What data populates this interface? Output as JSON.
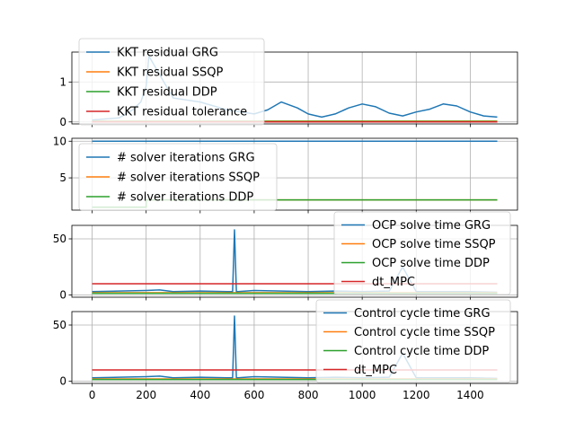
{
  "chart_data": [
    {
      "type": "line",
      "xlim": [
        -75,
        1575
      ],
      "ylim": [
        -0.05,
        1.75
      ],
      "yticks": [
        0,
        1
      ],
      "ytick_labels": [
        "0",
        "1"
      ],
      "xticks": [
        0,
        200,
        400,
        600,
        800,
        1000,
        1200,
        1400
      ],
      "show_xtick_labels": false,
      "grid": true,
      "legend_position": "upper-left",
      "series": [
        {
          "name": "KKT residual GRG",
          "color": "#1f77b4",
          "x": [
            0,
            100,
            150,
            180,
            200,
            210,
            300,
            400,
            500,
            600,
            650,
            700,
            760,
            800,
            850,
            900,
            950,
            1000,
            1050,
            1100,
            1150,
            1200,
            1250,
            1300,
            1350,
            1400,
            1450,
            1500
          ],
          "y": [
            0.05,
            0.1,
            0.3,
            0.5,
            0.9,
            1.65,
            0.6,
            0.5,
            0.3,
            0.2,
            0.3,
            0.5,
            0.35,
            0.2,
            0.12,
            0.2,
            0.35,
            0.45,
            0.38,
            0.22,
            0.15,
            0.25,
            0.32,
            0.45,
            0.4,
            0.25,
            0.15,
            0.12
          ]
        },
        {
          "name": "KKT residual SSQP",
          "color": "#ff7f0e",
          "x": [
            0,
            1500
          ],
          "y": [
            0.02,
            0.02
          ]
        },
        {
          "name": "KKT residual DDP",
          "color": "#2ca02c",
          "x": [
            0,
            1500
          ],
          "y": [
            0.01,
            0.01
          ]
        },
        {
          "name": "KKT residual tolerance",
          "color": "#d62728",
          "x": [
            0,
            1500
          ],
          "y": [
            0.0,
            0.0
          ]
        }
      ]
    },
    {
      "type": "line",
      "xlim": [
        -75,
        1575
      ],
      "ylim": [
        0.6,
        10.4
      ],
      "yticks": [
        5,
        10
      ],
      "ytick_labels": [
        "5",
        "10"
      ],
      "xticks": [
        0,
        200,
        400,
        600,
        800,
        1000,
        1200,
        1400
      ],
      "show_xtick_labels": false,
      "grid": true,
      "legend_position": "upper-left",
      "series": [
        {
          "name": "# solver iterations GRG",
          "color": "#1f77b4",
          "x": [
            0,
            1500
          ],
          "y": [
            10,
            10
          ]
        },
        {
          "name": "# solver iterations SSQP",
          "color": "#ff7f0e",
          "x": [
            0,
            200,
            200,
            1500
          ],
          "y": [
            1,
            1,
            2,
            2
          ]
        },
        {
          "name": "# solver iterations DDP",
          "color": "#2ca02c",
          "x": [
            0,
            200,
            200,
            1500
          ],
          "y": [
            1,
            1,
            2,
            2
          ]
        }
      ]
    },
    {
      "type": "line",
      "xlim": [
        -75,
        1575
      ],
      "ylim": [
        -2,
        62
      ],
      "yticks": [
        0,
        50
      ],
      "ytick_labels": [
        "0",
        "50"
      ],
      "xticks": [
        0,
        200,
        400,
        600,
        800,
        1000,
        1200,
        1400
      ],
      "show_xtick_labels": false,
      "grid": true,
      "legend_position": "upper-right",
      "series": [
        {
          "name": "OCP solve time GRG",
          "color": "#1f77b4",
          "x": [
            0,
            100,
            200,
            250,
            300,
            400,
            500,
            520,
            527,
            534,
            540,
            600,
            700,
            800,
            900,
            1000,
            1100,
            1150,
            1200,
            1300,
            1400,
            1500
          ],
          "y": [
            3,
            3.5,
            4,
            4.5,
            3,
            3.5,
            3,
            3,
            58,
            3,
            3,
            4,
            3.5,
            3,
            3.5,
            3,
            3.5,
            25,
            3,
            3,
            3,
            2.5
          ]
        },
        {
          "name": "OCP solve time SSQP",
          "color": "#ff7f0e",
          "x": [
            0,
            1500
          ],
          "y": [
            2,
            2
          ]
        },
        {
          "name": "OCP solve time DDP",
          "color": "#2ca02c",
          "x": [
            0,
            1500
          ],
          "y": [
            1.5,
            1.5
          ]
        },
        {
          "name": "dt_MPC",
          "color": "#d62728",
          "x": [
            0,
            1500
          ],
          "y": [
            10,
            10
          ]
        }
      ]
    },
    {
      "type": "line",
      "xlim": [
        -75,
        1575
      ],
      "ylim": [
        -2,
        62
      ],
      "yticks": [
        0,
        50
      ],
      "ytick_labels": [
        "0",
        "50"
      ],
      "xticks": [
        0,
        200,
        400,
        600,
        800,
        1000,
        1200,
        1400
      ],
      "xtick_labels": [
        "0",
        "200",
        "400",
        "600",
        "800",
        "1000",
        "1200",
        "1400"
      ],
      "show_xtick_labels": true,
      "grid": true,
      "legend_position": "upper-right",
      "series": [
        {
          "name": "Control cycle time GRG",
          "color": "#1f77b4",
          "x": [
            0,
            100,
            200,
            250,
            300,
            400,
            500,
            520,
            527,
            534,
            540,
            600,
            700,
            800,
            900,
            1000,
            1100,
            1150,
            1200,
            1300,
            1400,
            1500
          ],
          "y": [
            3,
            3.5,
            4,
            4.5,
            3,
            3.5,
            3,
            3,
            58,
            3,
            3,
            4,
            3.5,
            3,
            3.5,
            3,
            3.5,
            25,
            3,
            3,
            3,
            2.5
          ]
        },
        {
          "name": "Control cycle time SSQP",
          "color": "#ff7f0e",
          "x": [
            0,
            1500
          ],
          "y": [
            2,
            2
          ]
        },
        {
          "name": "Control cycle time DDP",
          "color": "#2ca02c",
          "x": [
            0,
            1500
          ],
          "y": [
            1.5,
            1.5
          ]
        },
        {
          "name": "dt_MPC",
          "color": "#d62728",
          "x": [
            0,
            1500
          ],
          "y": [
            10,
            10
          ]
        }
      ]
    }
  ]
}
